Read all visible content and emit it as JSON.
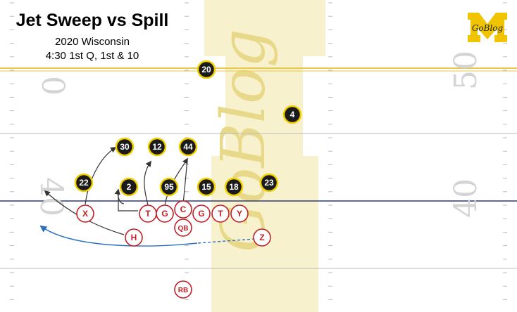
{
  "diagram": {
    "title": "Jet Sweep vs Spill",
    "subtitle": "2020 Wisconsin",
    "situation": "4:30 1st Q, 1st & 10",
    "watermark": "GoBlog",
    "logo_text": "GoBlog",
    "yard_numbers": {
      "left_top": "0",
      "left_bottom": "40",
      "right_top": "50",
      "right_bottom": "40"
    },
    "colors": {
      "defense_fill": "#1b1b1b",
      "defense_ring": "#f2d000",
      "offense_ring": "#c22026",
      "motion_line": "#2a6fc0",
      "yard_line_gold": "#e9c94a",
      "yard_line_blue": "#2d3a7a",
      "watermark_gold": "#f3e9b3"
    },
    "defense": [
      "20",
      "4",
      "30",
      "12",
      "44",
      "22",
      "2",
      "95",
      "15",
      "18",
      "23"
    ],
    "offense": [
      "X",
      "T",
      "G",
      "C",
      "G",
      "T",
      "Y",
      "QB",
      "H",
      "Z",
      "RB"
    ]
  }
}
